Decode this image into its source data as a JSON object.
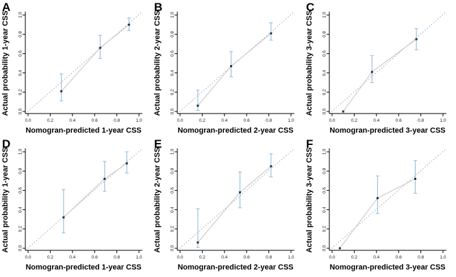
{
  "figure": {
    "background": "#ffffff",
    "description": "Calibration curves of nomogram, six panels A-F"
  },
  "axis": {
    "ticks": [
      "0.0",
      "0.2",
      "0.4",
      "0.6",
      "0.8",
      "1.0"
    ],
    "tick_values": [
      0,
      0.2,
      0.4,
      0.6,
      0.8,
      1.0
    ]
  },
  "colors": {
    "error_bar": "#9cc2dc",
    "marker": "#26303a",
    "ideal_line": "#8b9fb3",
    "calibration_line": "#cfc5c5",
    "axis": "#000000",
    "tick_label": "#1a1a1a",
    "text": "#000000"
  },
  "chart_data": [
    {
      "type": "scatter",
      "panel_label": "A",
      "xlabel": "Nomogran-predicted 1-year CSS",
      "ylabel": "Actual probability 1-year CSS",
      "xlim": [
        0,
        1
      ],
      "ylim": [
        0,
        1
      ],
      "ideal_line": "dotted diagonal y=x",
      "points": {
        "x": [
          0.3,
          0.65,
          0.91
        ],
        "y": [
          0.21,
          0.66,
          0.9
        ],
        "ci_lower": [
          0.11,
          0.55,
          0.84
        ],
        "ci_upper": [
          0.39,
          0.79,
          0.97
        ]
      }
    },
    {
      "type": "scatter",
      "panel_label": "B",
      "xlabel": "Nomogran-predicted 2-year CSS",
      "ylabel": "Actual probability 2-year CSS",
      "xlim": [
        0,
        1
      ],
      "ylim": [
        0,
        1
      ],
      "ideal_line": "dotted diagonal y=x",
      "points": {
        "x": [
          0.16,
          0.46,
          0.82
        ],
        "y": [
          0.06,
          0.47,
          0.81
        ],
        "ci_lower": [
          0.01,
          0.36,
          0.74
        ],
        "ci_upper": [
          0.22,
          0.62,
          0.92
        ]
      }
    },
    {
      "type": "scatter",
      "panel_label": "C",
      "xlabel": "Nomogran-predicted 3-year CSS",
      "ylabel": "Actual probability 3-year CSS",
      "xlim": [
        0,
        1
      ],
      "ylim": [
        0,
        1
      ],
      "ideal_line": "dotted diagonal y=x",
      "points": {
        "x": [
          0.1,
          0.36,
          0.76
        ],
        "y": [
          0.0,
          0.41,
          0.75
        ],
        "ci_lower": [
          0.0,
          0.3,
          0.64
        ],
        "ci_upper": [
          0.0,
          0.58,
          0.86
        ]
      }
    },
    {
      "type": "scatter",
      "panel_label": "D",
      "xlabel": "Nomogran-predicted 1-year CSS",
      "ylabel": "Actual probability 1-year CSS",
      "xlim": [
        0,
        1
      ],
      "ylim": [
        0,
        1
      ],
      "ideal_line": "dotted diagonal y=x",
      "points": {
        "x": [
          0.32,
          0.69,
          0.89
        ],
        "y": [
          0.32,
          0.72,
          0.88
        ],
        "ci_lower": [
          0.16,
          0.59,
          0.78
        ],
        "ci_upper": [
          0.61,
          0.9,
          1.0
        ]
      }
    },
    {
      "type": "scatter",
      "panel_label": "E",
      "xlabel": "Nomogran-predicted 2-year CSS",
      "ylabel": "Actual probability 2-year CSS",
      "xlim": [
        0,
        1
      ],
      "ylim": [
        0,
        1
      ],
      "ideal_line": "dotted diagonal y=x",
      "points": {
        "x": [
          0.16,
          0.54,
          0.82
        ],
        "y": [
          0.06,
          0.58,
          0.85
        ],
        "ci_lower": [
          0.01,
          0.42,
          0.74
        ],
        "ci_upper": [
          0.41,
          0.79,
          0.98
        ]
      }
    },
    {
      "type": "scatter",
      "panel_label": "F",
      "xlabel": "Nomogran-predicted 3-year CSS",
      "ylabel": "Actual probability 3-year CSS",
      "xlim": [
        0,
        1
      ],
      "ylim": [
        0,
        1
      ],
      "ideal_line": "dotted diagonal y=x",
      "points": {
        "x": [
          0.07,
          0.41,
          0.75
        ],
        "y": [
          0.0,
          0.52,
          0.72
        ],
        "ci_lower": [
          0.0,
          0.36,
          0.57
        ],
        "ci_upper": [
          0.0,
          0.75,
          0.91
        ]
      }
    }
  ]
}
